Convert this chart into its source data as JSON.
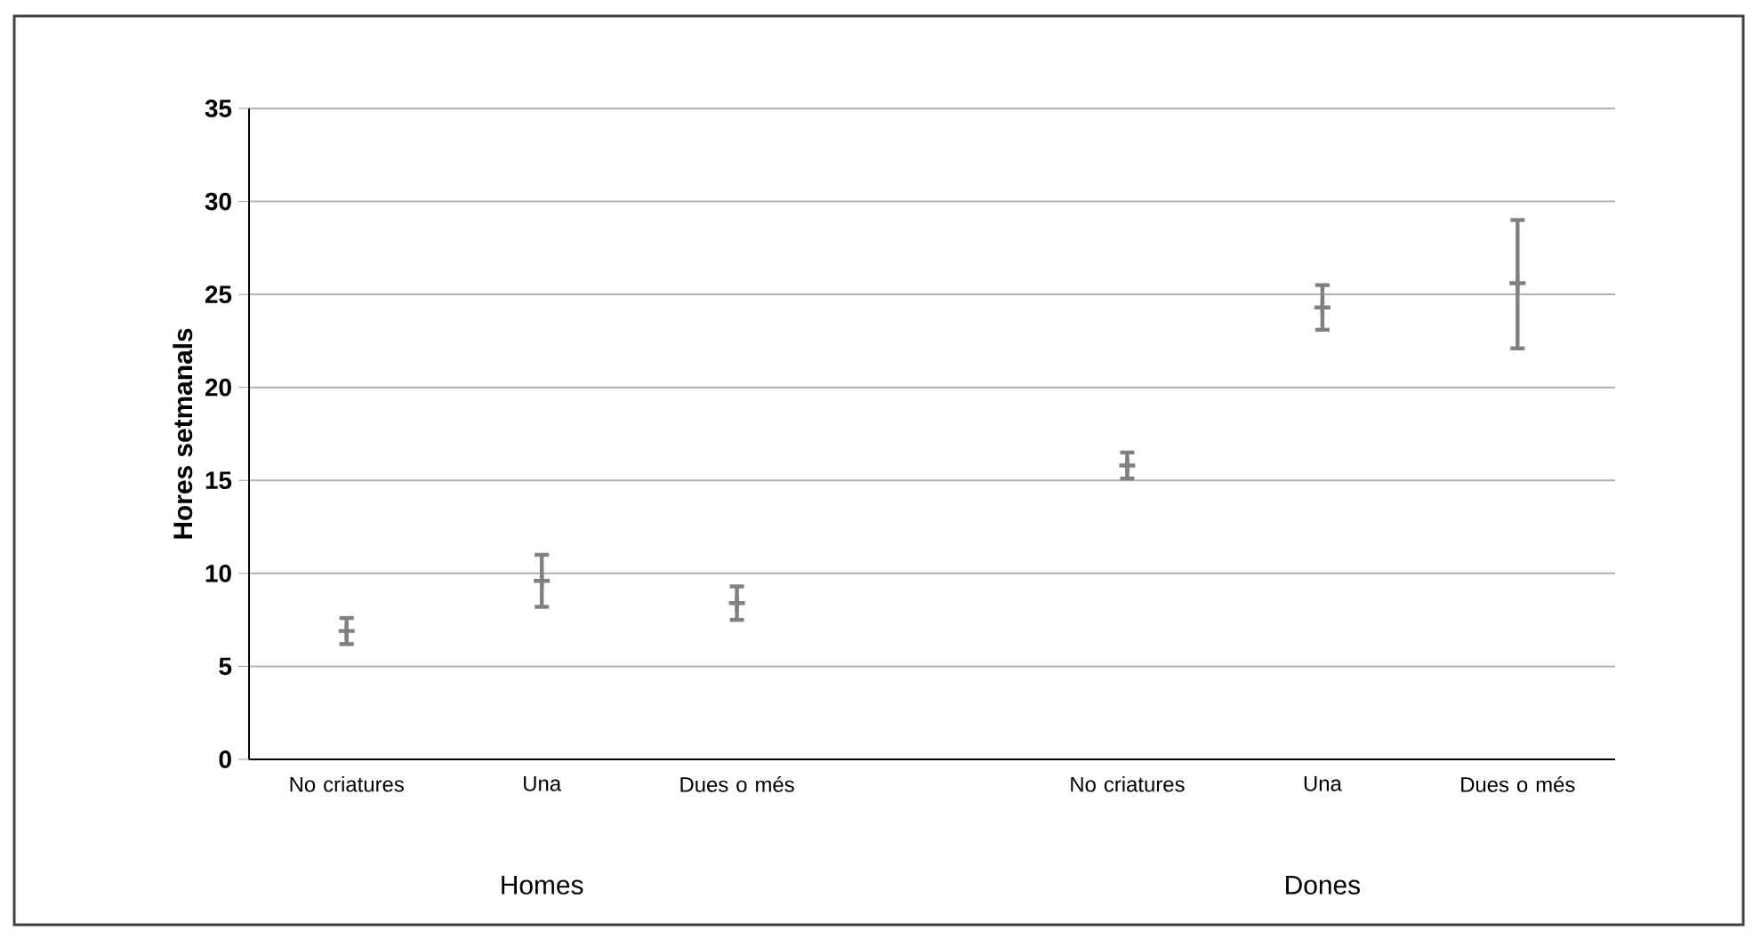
{
  "chart_data": {
    "type": "scatter",
    "ylabel": "Hores setmanals",
    "categories": [
      "No criatures",
      "Una",
      "Dues o més",
      null,
      "No criatures",
      "Una",
      "Dues o més"
    ],
    "values": [
      6.9,
      9.6,
      8.4,
      null,
      15.8,
      24.3,
      25.6
    ],
    "errors": [
      0.7,
      1.4,
      0.9,
      null,
      0.7,
      1.2,
      [
        22.1,
        29.0
      ]
    ],
    "color": "#808080",
    "marker": "cross",
    "ylim": [
      0,
      35
    ],
    "yticks": [
      0,
      5,
      10,
      15,
      20,
      25,
      30,
      35
    ],
    "grid": "y",
    "annotations": [
      "Homes",
      "Dones"
    ]
  }
}
